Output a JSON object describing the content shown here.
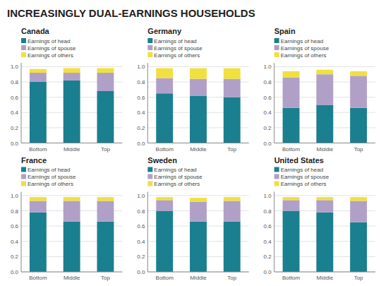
{
  "title": "INCREASINGLY DUAL-EARNINGS HOUSEHOLDS",
  "chart_data": [
    {
      "type": "bar",
      "stacked": true,
      "title": "Canada",
      "categories": [
        "Bottom",
        "Middle",
        "Top"
      ],
      "series": [
        {
          "name": "Earnings of head",
          "color": "#1a7f8e",
          "values": [
            0.8,
            0.82,
            0.68
          ]
        },
        {
          "name": "Earnings of spouse",
          "color": "#b0a0c8",
          "values": [
            0.12,
            0.1,
            0.24
          ]
        },
        {
          "name": "Earnings of others",
          "color": "#f0e040",
          "values": [
            0.05,
            0.06,
            0.06
          ]
        }
      ],
      "ylim": [
        0.0,
        1.05
      ],
      "yticks": [
        {
          "value": 0.0,
          "label": "0.0"
        },
        0.2,
        0.4,
        0.6,
        0.8,
        {
          "value": 1.0,
          "label": "1.0"
        }
      ],
      "grid": true,
      "legend": "top"
    },
    {
      "type": "bar",
      "stacked": true,
      "title": "Germany",
      "categories": [
        "Bottom",
        "Middle",
        "Top"
      ],
      "series": [
        {
          "name": "Earnings of head",
          "color": "#1a7f8e",
          "values": [
            0.65,
            0.62,
            0.6
          ]
        },
        {
          "name": "Earnings of spouse",
          "color": "#b0a0c8",
          "values": [
            0.2,
            0.22,
            0.24
          ]
        },
        {
          "name": "Earnings of others",
          "color": "#f0e040",
          "values": [
            0.13,
            0.14,
            0.14
          ]
        }
      ],
      "ylim": [
        0.0,
        1.05
      ],
      "yticks": [
        {
          "value": 0.0,
          "label": "0.0"
        },
        0.2,
        0.4,
        0.6,
        0.8,
        {
          "value": 1.0,
          "label": "1.0"
        }
      ],
      "grid": true,
      "legend": "top"
    },
    {
      "type": "bar",
      "stacked": true,
      "title": "Spain",
      "categories": [
        "Bottom",
        "Middle",
        "Top"
      ],
      "series": [
        {
          "name": "Earnings of head",
          "color": "#1a7f8e",
          "values": [
            0.46,
            0.5,
            0.46
          ]
        },
        {
          "name": "Earnings of spouse",
          "color": "#b0a0c8",
          "values": [
            0.4,
            0.4,
            0.42
          ]
        },
        {
          "name": "Earnings of others",
          "color": "#f0e040",
          "values": [
            0.08,
            0.06,
            0.06
          ]
        }
      ],
      "ylim": [
        0.0,
        1.05
      ],
      "yticks": [
        {
          "value": 0.0,
          "label": "0.0"
        },
        0.2,
        0.4,
        0.6,
        0.8,
        {
          "value": 1.0,
          "label": "1.0"
        }
      ],
      "grid": true,
      "legend": "top"
    },
    {
      "type": "bar",
      "stacked": true,
      "title": "France",
      "categories": [
        "Bottom",
        "Middle",
        "Top"
      ],
      "series": [
        {
          "name": "Earnings of head",
          "color": "#1a7f8e",
          "values": [
            0.78,
            0.66,
            0.66
          ]
        },
        {
          "name": "Earnings of spouse",
          "color": "#b0a0c8",
          "values": [
            0.15,
            0.27,
            0.27
          ]
        },
        {
          "name": "Earnings of others",
          "color": "#f0e040",
          "values": [
            0.05,
            0.05,
            0.05
          ]
        }
      ],
      "ylim": [
        0.0,
        1.05
      ],
      "yticks": [
        {
          "value": 0.0,
          "label": "0.0"
        },
        0.2,
        0.4,
        0.6,
        0.8,
        {
          "value": 1.0,
          "label": "1.0"
        }
      ],
      "grid": true,
      "legend": "top"
    },
    {
      "type": "bar",
      "stacked": true,
      "title": "Sweden",
      "categories": [
        "Bottom",
        "Middle",
        "Top"
      ],
      "series": [
        {
          "name": "Earnings of head",
          "color": "#1a7f8e",
          "values": [
            0.8,
            0.66,
            0.66
          ]
        },
        {
          "name": "Earnings of spouse",
          "color": "#b0a0c8",
          "values": [
            0.14,
            0.26,
            0.27
          ]
        },
        {
          "name": "Earnings of others",
          "color": "#f0e040",
          "values": [
            0.04,
            0.05,
            0.05
          ]
        }
      ],
      "ylim": [
        0.0,
        1.05
      ],
      "yticks": [
        {
          "value": 0.0,
          "label": "0.0"
        },
        0.2,
        0.4,
        0.6,
        0.8,
        {
          "value": 1.0,
          "label": "1.0"
        }
      ],
      "grid": true,
      "legend": "top"
    },
    {
      "type": "bar",
      "stacked": true,
      "title": "United States",
      "categories": [
        "Bottom",
        "Middle",
        "Top"
      ],
      "series": [
        {
          "name": "Earnings of head",
          "color": "#1a7f8e",
          "values": [
            0.8,
            0.78,
            0.65
          ]
        },
        {
          "name": "Earnings of spouse",
          "color": "#b0a0c8",
          "values": [
            0.14,
            0.16,
            0.28
          ]
        },
        {
          "name": "Earnings of others",
          "color": "#f0e040",
          "values": [
            0.04,
            0.04,
            0.05
          ]
        }
      ],
      "ylim": [
        0.0,
        1.05
      ],
      "yticks": [
        {
          "value": 0.0,
          "label": "0.0"
        },
        0.2,
        0.4,
        0.6,
        0.8,
        {
          "value": 1.0,
          "label": "1.0"
        }
      ],
      "grid": true,
      "legend": "top"
    }
  ]
}
